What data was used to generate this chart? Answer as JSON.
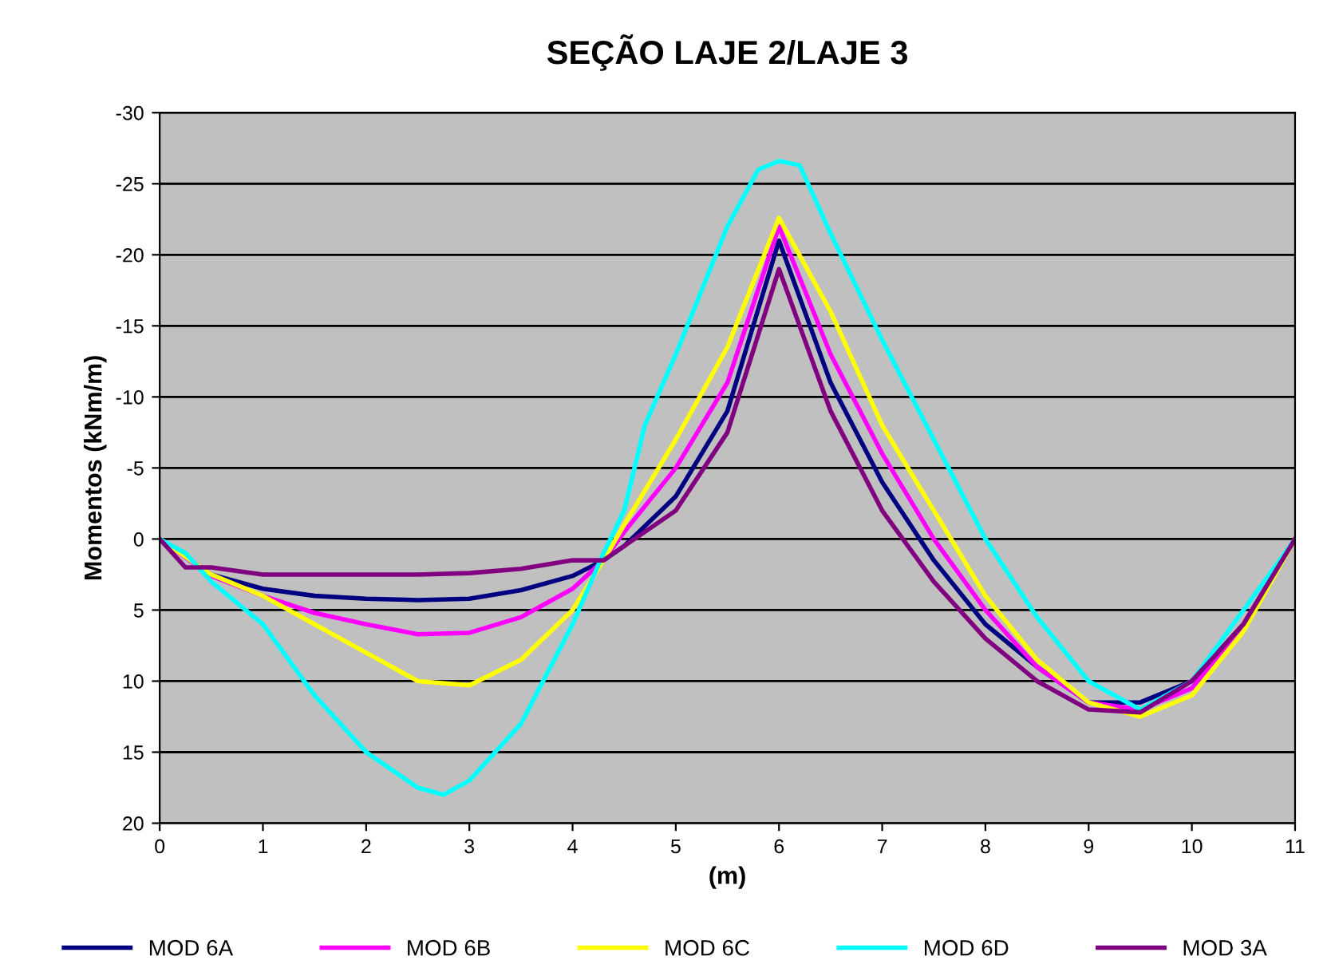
{
  "chart_data": {
    "type": "line",
    "title": "SEÇÃO LAJE 2/LAJE 3",
    "xlabel": "(m)",
    "ylabel": "Momentos (kNm/m)",
    "xlim": [
      0,
      11
    ],
    "xticks": [
      0,
      1,
      2,
      3,
      4,
      5,
      6,
      7,
      8,
      9,
      10,
      11
    ],
    "ylim": [
      20,
      -30
    ],
    "yticks": [
      20,
      15,
      10,
      5,
      0,
      -5,
      -10,
      -15,
      -20,
      -25,
      -30
    ],
    "grid": "y",
    "legend": "bottom",
    "marker": "none",
    "line_style": "solid",
    "series": [
      {
        "name": "MOD 6A",
        "color": "#000080",
        "x": [
          0,
          0.5,
          1,
          1.5,
          2,
          2.5,
          3,
          3.5,
          4,
          4.3,
          4.5,
          5,
          5.5,
          6,
          6.5,
          7,
          7.5,
          8,
          8.5,
          9,
          9.5,
          10,
          10.5,
          11
        ],
        "values": [
          0,
          2.5,
          3.5,
          4,
          4.2,
          4.3,
          4.2,
          3.6,
          2.6,
          1.5,
          0.5,
          -3,
          -9,
          -21,
          -11,
          -4,
          1.5,
          6,
          9,
          11.5,
          11.5,
          10,
          6,
          0
        ]
      },
      {
        "name": "MOD 6B",
        "color": "#ff00ff",
        "x": [
          0,
          0.5,
          1,
          1.5,
          2,
          2.5,
          3,
          3.5,
          4,
          4.3,
          4.5,
          5,
          5.5,
          6,
          6.5,
          7,
          7.5,
          8,
          8.5,
          9,
          9.5,
          10,
          10.5,
          11
        ],
        "values": [
          0,
          2.6,
          4,
          5.2,
          6,
          6.7,
          6.6,
          5.5,
          3.5,
          1.5,
          -0.5,
          -5,
          -11,
          -22,
          -13,
          -6,
          0,
          5,
          9,
          11.5,
          12,
          10.5,
          6,
          0
        ]
      },
      {
        "name": "MOD 6C",
        "color": "#ffff00",
        "x": [
          0,
          0.5,
          1,
          1.5,
          2,
          2.5,
          3,
          3.5,
          4,
          4.3,
          4.5,
          5,
          5.5,
          6,
          6.5,
          7,
          7.5,
          8,
          8.5,
          9,
          9.5,
          10,
          10.5,
          11
        ],
        "values": [
          0,
          2.5,
          4,
          6,
          8,
          10,
          10.3,
          8.5,
          5,
          1.5,
          -1,
          -7,
          -13.5,
          -22.6,
          -16,
          -8,
          -2,
          4,
          8.5,
          11.5,
          12.5,
          11,
          6.5,
          0
        ]
      },
      {
        "name": "MOD 6D",
        "color": "#00ffff",
        "x": [
          0,
          0.25,
          0.5,
          1,
          1.5,
          2,
          2.5,
          2.75,
          3,
          3.5,
          4,
          4.3,
          4.5,
          4.7,
          5,
          5.5,
          5.8,
          6,
          6.2,
          6.5,
          7,
          7.5,
          8,
          8.5,
          9,
          9.5,
          10,
          10.5,
          10.8,
          11
        ],
        "values": [
          0,
          1,
          3,
          6,
          11,
          15,
          17.5,
          18,
          17,
          13,
          6,
          1,
          -2,
          -8,
          -13,
          -22,
          -26,
          -26.6,
          -26.3,
          -21.5,
          -14,
          -7,
          0,
          5.5,
          10,
          12,
          10,
          5,
          2,
          0
        ]
      },
      {
        "name": "MOD 3A",
        "color": "#800080",
        "x": [
          0,
          0.25,
          0.5,
          1,
          1.5,
          2,
          2.5,
          3,
          3.5,
          4,
          4.3,
          4.5,
          5,
          5.5,
          6,
          6.5,
          7,
          7.5,
          8,
          8.5,
          9,
          9.5,
          10,
          10.5,
          11
        ],
        "values": [
          0,
          2,
          2,
          2.5,
          2.5,
          2.5,
          2.5,
          2.4,
          2.1,
          1.5,
          1.5,
          0.5,
          -2,
          -7.5,
          -19,
          -9,
          -2,
          3,
          7,
          10,
          12,
          12.2,
          10,
          6,
          0
        ]
      }
    ]
  }
}
